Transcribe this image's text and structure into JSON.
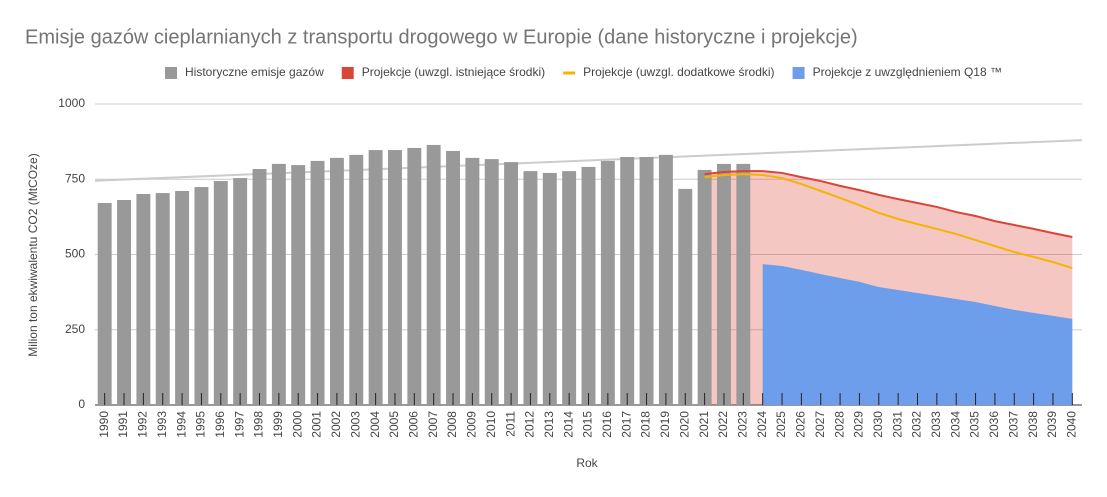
{
  "chart_data": {
    "type": "combo",
    "title": "Emisje gazów cieplarnianych z transportu drogowego w Europie (dane historyczne i projekcje)",
    "x_label": "Rok",
    "y_label": "Milion ton ekwiwalentu CO2 (MtCOze)",
    "categories": [
      "1990",
      "1991",
      "1992",
      "1993",
      "1994",
      "1995",
      "1996",
      "1997",
      "1998",
      "1999",
      "2000",
      "2001",
      "2002",
      "2003",
      "2004",
      "2005",
      "2006",
      "2007",
      "2008",
      "2009",
      "2010",
      "2011",
      "2012",
      "2013",
      "2014",
      "2015",
      "2016",
      "2017",
      "2018",
      "2019",
      "2020",
      "2021",
      "2022",
      "2023",
      "2024",
      "2025",
      "2026",
      "2027",
      "2028",
      "2029",
      "2030",
      "2031",
      "2032",
      "2033",
      "2034",
      "2035",
      "2036",
      "2037",
      "2038",
      "2039",
      "2040"
    ],
    "ylim": [
      0,
      1000
    ],
    "yticks": [
      0,
      250,
      500,
      750,
      1000
    ],
    "grid": true,
    "legend": "top",
    "series": [
      {
        "name": "Historyczne emisje gazów",
        "type": "bar",
        "color": "#999999",
        "values": [
          671,
          681,
          701,
          704,
          711,
          724,
          744,
          754,
          784,
          801,
          797,
          811,
          821,
          831,
          847,
          847,
          854,
          864,
          844,
          821,
          817,
          807,
          777,
          771,
          777,
          791,
          811,
          824,
          824,
          831,
          718,
          781,
          801,
          801,
          null,
          null,
          null,
          null,
          null,
          null,
          null,
          null,
          null,
          null,
          null,
          null,
          null,
          null,
          null,
          null,
          null
        ]
      },
      {
        "name": "Projekcje (uwzgl. istniejące środki)",
        "type": "area",
        "color": "#db4437",
        "fill_opacity": 0.3,
        "values": [
          null,
          null,
          null,
          null,
          null,
          null,
          null,
          null,
          null,
          null,
          null,
          null,
          null,
          null,
          null,
          null,
          null,
          null,
          null,
          null,
          null,
          null,
          null,
          null,
          null,
          null,
          null,
          null,
          null,
          null,
          null,
          767,
          774,
          777,
          777,
          771,
          757,
          744,
          728,
          714,
          698,
          684,
          671,
          658,
          641,
          628,
          611,
          598,
          585,
          571,
          558
        ]
      },
      {
        "name": "Projekcje (uwzgl. dodatkowe środki)",
        "type": "line",
        "color": "#f4b400",
        "values": [
          null,
          null,
          null,
          null,
          null,
          null,
          null,
          null,
          null,
          null,
          null,
          null,
          null,
          null,
          null,
          null,
          null,
          null,
          null,
          null,
          null,
          null,
          null,
          null,
          null,
          null,
          null,
          null,
          null,
          null,
          null,
          757,
          764,
          767,
          764,
          754,
          734,
          711,
          688,
          664,
          638,
          618,
          601,
          585,
          568,
          548,
          528,
          508,
          492,
          475,
          455
        ]
      },
      {
        "name": "Projekcje z uwzględnieniem Q18 ™",
        "type": "area",
        "color": "#6d9eeb",
        "fill_opacity": 1,
        "values": [
          null,
          null,
          null,
          null,
          null,
          null,
          null,
          null,
          null,
          null,
          null,
          null,
          null,
          null,
          null,
          null,
          null,
          null,
          null,
          null,
          null,
          null,
          null,
          null,
          null,
          null,
          null,
          null,
          null,
          null,
          null,
          null,
          null,
          null,
          468,
          462,
          449,
          435,
          422,
          409,
          392,
          382,
          372,
          362,
          352,
          342,
          329,
          316,
          306,
          296,
          286
        ]
      }
    ],
    "trendline": {
      "color": "#cccccc",
      "values": [
        745,
        880
      ]
    }
  }
}
